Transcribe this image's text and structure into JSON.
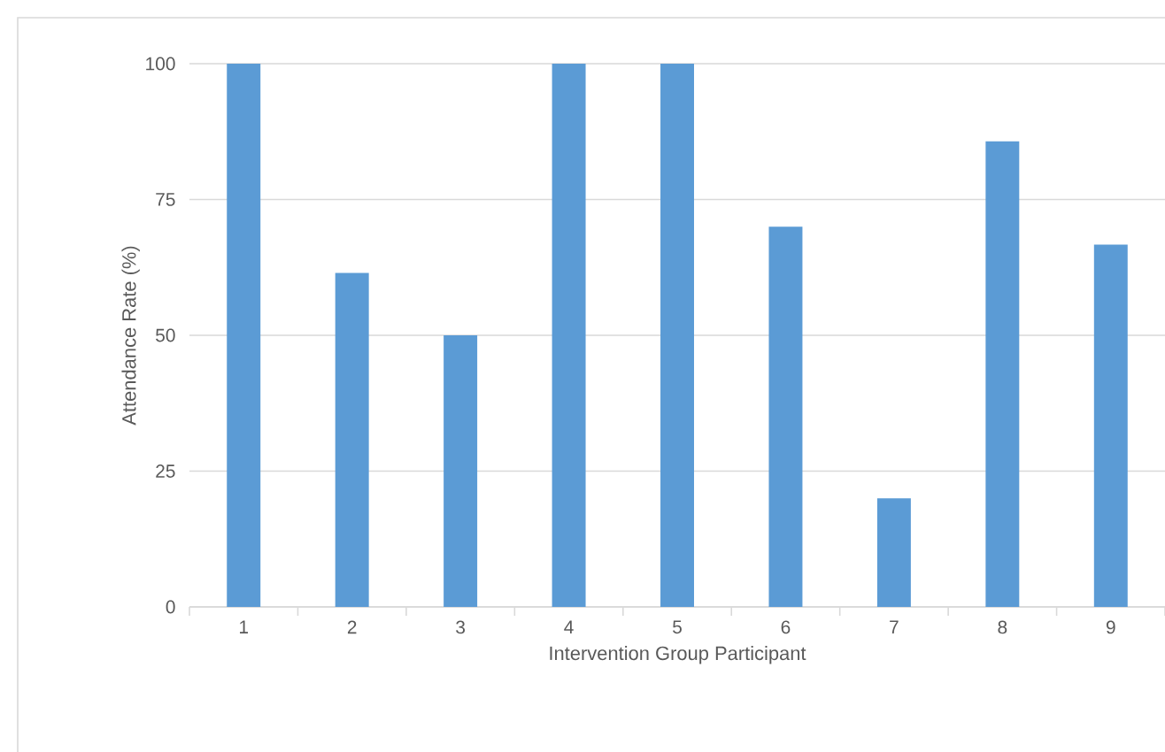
{
  "chart_data": {
    "type": "bar",
    "xlabel": "Intervention Group Participant",
    "ylabel": "Attendance Rate (%)",
    "categories": [
      "1",
      "2",
      "3",
      "4",
      "5",
      "6",
      "7",
      "8",
      "9"
    ],
    "values": [
      100,
      61.5,
      50,
      100,
      100,
      70,
      20,
      85.7,
      66.7
    ],
    "color": "#5b9bd5",
    "ylim": [
      0,
      100
    ],
    "yticks": [
      0,
      25,
      50,
      75,
      100
    ],
    "grid": "y"
  }
}
